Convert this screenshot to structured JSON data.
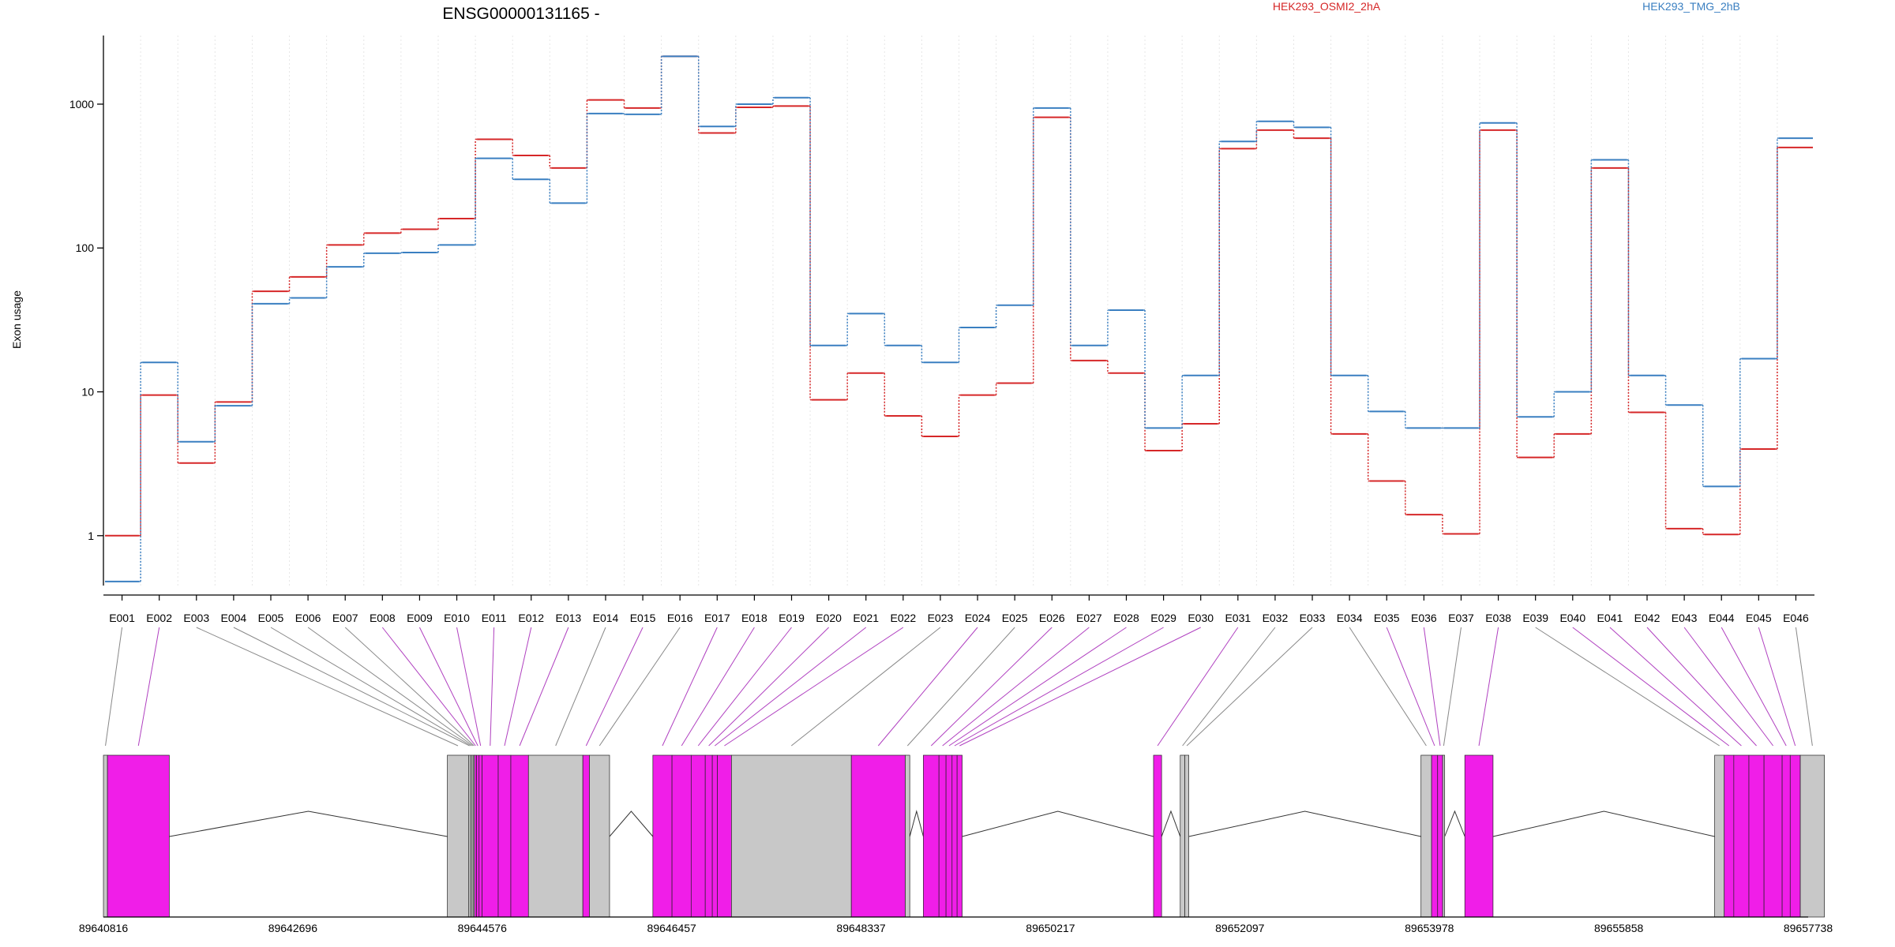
{
  "chart_data": {
    "type": "line",
    "title": "ENSG00000131165 -",
    "ylabel": "Exon usage",
    "y_scale": "log",
    "ylim": [
      0.45,
      3000
    ],
    "y_ticks": [
      1,
      10,
      100,
      1000
    ],
    "y_tick_labels": [
      "1",
      "10",
      "100",
      "1000"
    ],
    "grid": "vertical dotted lines at exon boundaries",
    "legend_placement": "top",
    "categories": [
      "E001",
      "E002",
      "E003",
      "E004",
      "E005",
      "E006",
      "E007",
      "E008",
      "E009",
      "E010",
      "E011",
      "E012",
      "E013",
      "E014",
      "E015",
      "E016",
      "E017",
      "E018",
      "E019",
      "E020",
      "E021",
      "E022",
      "E023",
      "E024",
      "E025",
      "E026",
      "E027",
      "E028",
      "E029",
      "E030",
      "E031",
      "E032",
      "E033",
      "E034",
      "E035",
      "E036",
      "E037",
      "E038",
      "E039",
      "E040",
      "E041",
      "E042",
      "E043",
      "E044",
      "E045",
      "E046"
    ],
    "series": [
      {
        "name": "HEK293_OSMI2_2hA",
        "color": "#d62728",
        "values": [
          1.0,
          9.5,
          3.2,
          8.5,
          50,
          63,
          105,
          127,
          135,
          160,
          570,
          440,
          360,
          1070,
          940,
          2150,
          630,
          950,
          970,
          8.8,
          13.5,
          6.8,
          4.9,
          9.5,
          11.5,
          810,
          16.5,
          13.5,
          3.9,
          6.0,
          490,
          660,
          580,
          5.1,
          2.4,
          1.4,
          1.03,
          660,
          3.5,
          5.1,
          360,
          7.2,
          1.12,
          1.02,
          4.0,
          500
        ]
      },
      {
        "name": "HEK293_TMG_2hB",
        "color": "#3a7fc1",
        "values": [
          0.48,
          16,
          4.5,
          8.0,
          41,
          45,
          74,
          92,
          93,
          105,
          420,
          300,
          205,
          860,
          850,
          2150,
          700,
          1000,
          1110,
          21,
          35,
          21,
          16,
          28,
          40,
          940,
          21,
          37,
          5.6,
          13,
          550,
          760,
          690,
          13,
          7.3,
          5.6,
          5.6,
          740,
          6.7,
          10,
          410,
          13,
          8.1,
          2.2,
          17,
          580
        ]
      }
    ],
    "gene_model": {
      "coordinate_ticks": [
        89640816,
        89642696,
        89644576,
        89646457,
        89648337,
        89650217,
        89652097,
        89653978,
        89655858,
        89657738
      ],
      "coordinate_tick_labels": [
        "89640816",
        "89642696",
        "89644576",
        "89646457",
        "89648337",
        "89650217",
        "89652097",
        "89653978",
        "89655858",
        "89657738"
      ],
      "features": [
        {
          "exon": "E001",
          "start": 89640816,
          "end": 89640856,
          "kind": "utr"
        },
        {
          "exon": "E002",
          "start": 89640856,
          "end": 89641470,
          "kind": "tested"
        },
        {
          "exon": "E003",
          "start": 89644230,
          "end": 89644440,
          "kind": "utr"
        },
        {
          "exon": "E004",
          "start": 89644440,
          "end": 89644460,
          "kind": "utr"
        },
        {
          "exon": "E005",
          "start": 89644460,
          "end": 89644475,
          "kind": "utr"
        },
        {
          "exon": "E006",
          "start": 89644475,
          "end": 89644490,
          "kind": "utr"
        },
        {
          "exon": "E007",
          "start": 89644490,
          "end": 89644500,
          "kind": "utr"
        },
        {
          "exon": "E008",
          "start": 89644500,
          "end": 89644520,
          "kind": "tested"
        },
        {
          "exon": "E009",
          "start": 89644520,
          "end": 89644545,
          "kind": "tested"
        },
        {
          "exon": "E010",
          "start": 89644545,
          "end": 89644575,
          "kind": "tested"
        },
        {
          "exon": "E011",
          "start": 89644575,
          "end": 89644735,
          "kind": "tested"
        },
        {
          "exon": "E012",
          "start": 89644735,
          "end": 89644860,
          "kind": "tested"
        },
        {
          "exon": "E013",
          "start": 89644860,
          "end": 89645035,
          "kind": "tested"
        },
        {
          "exon": "E014",
          "start": 89645035,
          "end": 89645575,
          "kind": "utr"
        },
        {
          "exon": "E015",
          "start": 89645575,
          "end": 89645640,
          "kind": "tested"
        },
        {
          "exon": "E016",
          "start": 89645640,
          "end": 89645840,
          "kind": "utr"
        },
        {
          "exon": "E017",
          "start": 89646270,
          "end": 89646460,
          "kind": "tested"
        },
        {
          "exon": "E018",
          "start": 89646460,
          "end": 89646650,
          "kind": "tested"
        },
        {
          "exon": "E019",
          "start": 89646650,
          "end": 89646790,
          "kind": "tested"
        },
        {
          "exon": "E020",
          "start": 89646790,
          "end": 89646860,
          "kind": "tested"
        },
        {
          "exon": "E021",
          "start": 89646860,
          "end": 89646910,
          "kind": "tested"
        },
        {
          "exon": "E022",
          "start": 89646910,
          "end": 89647050,
          "kind": "tested"
        },
        {
          "exon": "E023",
          "start": 89647050,
          "end": 89648240,
          "kind": "utr"
        },
        {
          "exon": "E024",
          "start": 89648240,
          "end": 89648775,
          "kind": "tested"
        },
        {
          "exon": "E025",
          "start": 89648775,
          "end": 89648820,
          "kind": "utr"
        },
        {
          "exon": "E026",
          "start": 89648955,
          "end": 89649110,
          "kind": "tested"
        },
        {
          "exon": "E027",
          "start": 89649110,
          "end": 89649180,
          "kind": "tested"
        },
        {
          "exon": "E028",
          "start": 89649180,
          "end": 89649240,
          "kind": "tested"
        },
        {
          "exon": "E029",
          "start": 89649240,
          "end": 89649290,
          "kind": "tested"
        },
        {
          "exon": "E030",
          "start": 89649290,
          "end": 89649340,
          "kind": "tested"
        },
        {
          "exon": "E031",
          "start": 89651240,
          "end": 89651320,
          "kind": "tested"
        },
        {
          "exon": "E032",
          "start": 89651505,
          "end": 89651550,
          "kind": "utr"
        },
        {
          "exon": "E033",
          "start": 89651550,
          "end": 89651590,
          "kind": "utr"
        },
        {
          "exon": "E034",
          "start": 89653895,
          "end": 89654000,
          "kind": "utr"
        },
        {
          "exon": "E035",
          "start": 89654000,
          "end": 89654060,
          "kind": "tested"
        },
        {
          "exon": "E036",
          "start": 89654060,
          "end": 89654110,
          "kind": "tested"
        },
        {
          "exon": "E037",
          "start": 89654110,
          "end": 89654130,
          "kind": "utr"
        },
        {
          "exon": "E038",
          "start": 89654330,
          "end": 89654610,
          "kind": "tested"
        },
        {
          "exon": "E039",
          "start": 89656810,
          "end": 89656905,
          "kind": "utr"
        },
        {
          "exon": "E040",
          "start": 89656905,
          "end": 89657000,
          "kind": "tested"
        },
        {
          "exon": "E041",
          "start": 89657000,
          "end": 89657150,
          "kind": "tested"
        },
        {
          "exon": "E042",
          "start": 89657150,
          "end": 89657300,
          "kind": "tested"
        },
        {
          "exon": "E043",
          "start": 89657300,
          "end": 89657480,
          "kind": "tested"
        },
        {
          "exon": "E044",
          "start": 89657480,
          "end": 89657560,
          "kind": "tested"
        },
        {
          "exon": "E045",
          "start": 89657560,
          "end": 89657660,
          "kind": "tested"
        },
        {
          "exon": "E046",
          "start": 89657660,
          "end": 89657900,
          "kind": "utr"
        }
      ],
      "introns": [
        [
          89641470,
          89644230
        ],
        [
          89645840,
          89646270
        ],
        [
          89648820,
          89648955
        ],
        [
          89649340,
          89651240
        ],
        [
          89651320,
          89651505
        ],
        [
          89651590,
          89653895
        ],
        [
          89654130,
          89654330
        ],
        [
          89654610,
          89656810
        ]
      ],
      "colors": {
        "tested": "#f01ee8",
        "utr": "#c8c8c8",
        "dark_boundary": "#333333",
        "link_tested": "#b040c0",
        "link_utr": "#888888"
      }
    }
  }
}
